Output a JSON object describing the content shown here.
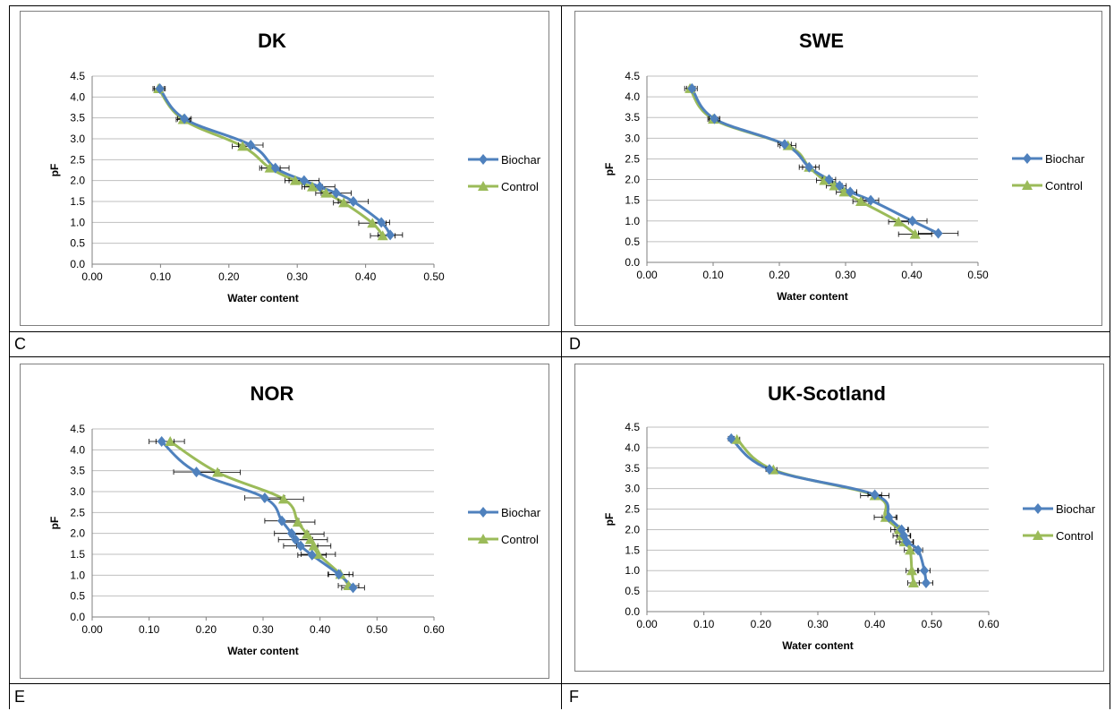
{
  "colors": {
    "biochar": "#4f81bd",
    "control": "#9bbb59",
    "grid": "#bfbfbf",
    "axis": "#7f7f7f",
    "error_bar": "#000000"
  },
  "panel_letters": [
    "C",
    "D",
    "E",
    "F"
  ],
  "chart_data": [
    {
      "type": "line",
      "title": "DK",
      "xlabel": "Water content",
      "ylabel": "pF",
      "xlim": [
        0.0,
        0.5
      ],
      "ylim": [
        0.0,
        4.5
      ],
      "xticks": [
        "0.00",
        "0.10",
        "0.20",
        "0.30",
        "0.40",
        "0.50"
      ],
      "yticks": [
        "0.0",
        "0.5",
        "1.0",
        "1.5",
        "2.0",
        "2.5",
        "3.0",
        "3.5",
        "4.0",
        "4.5"
      ],
      "grid": true,
      "legend_position": "right",
      "series": [
        {
          "name": "Biochar",
          "marker": "diamond",
          "x": [
            0.099,
            0.135,
            0.232,
            0.268,
            0.31,
            0.333,
            0.357,
            0.382,
            0.423,
            0.436
          ],
          "y": [
            4.2,
            3.48,
            2.85,
            2.3,
            2.0,
            1.85,
            1.7,
            1.5,
            1.0,
            0.7
          ],
          "error": [
            0.008,
            0.01,
            0.018,
            0.02,
            0.022,
            0.022,
            0.022,
            0.022,
            0.012,
            0.018
          ]
        },
        {
          "name": "Control",
          "marker": "triangle",
          "x": [
            0.097,
            0.133,
            0.22,
            0.26,
            0.297,
            0.322,
            0.342,
            0.368,
            0.41,
            0.425
          ],
          "y": [
            4.2,
            3.46,
            2.82,
            2.3,
            2.0,
            1.85,
            1.7,
            1.47,
            0.98,
            0.68
          ],
          "error": [
            0.008,
            0.01,
            0.015,
            0.015,
            0.015,
            0.015,
            0.015,
            0.015,
            0.02,
            0.018
          ]
        }
      ]
    },
    {
      "type": "line",
      "title": "SWE",
      "xlabel": "Water content",
      "ylabel": "pF",
      "xlim": [
        0.0,
        0.5
      ],
      "ylim": [
        0.0,
        4.5
      ],
      "xticks": [
        "0.00",
        "0.10",
        "0.20",
        "0.30",
        "0.40",
        "0.50"
      ],
      "yticks": [
        "0.0",
        "0.5",
        "1.0",
        "1.5",
        "2.0",
        "2.5",
        "3.0",
        "3.5",
        "4.0",
        "4.5"
      ],
      "grid": true,
      "legend_position": "right",
      "series": [
        {
          "name": "Biochar",
          "marker": "diamond",
          "x": [
            0.068,
            0.102,
            0.208,
            0.245,
            0.275,
            0.291,
            0.307,
            0.338,
            0.401,
            0.44
          ],
          "y": [
            4.2,
            3.47,
            2.85,
            2.3,
            2.0,
            1.85,
            1.7,
            1.5,
            1.0,
            0.7
          ],
          "error": [
            0.008,
            0.008,
            0.01,
            0.01,
            0.01,
            0.01,
            0.01,
            0.012,
            0.022,
            0.03
          ]
        },
        {
          "name": "Control",
          "marker": "triangle",
          "x": [
            0.065,
            0.1,
            0.213,
            0.245,
            0.268,
            0.283,
            0.298,
            0.323,
            0.38,
            0.405
          ],
          "y": [
            4.2,
            3.46,
            2.82,
            2.3,
            1.98,
            1.85,
            1.7,
            1.47,
            0.98,
            0.68
          ],
          "error": [
            0.008,
            0.008,
            0.012,
            0.015,
            0.012,
            0.012,
            0.012,
            0.012,
            0.015,
            0.025
          ]
        }
      ]
    },
    {
      "type": "line",
      "title": "NOR",
      "xlabel": "Water content",
      "ylabel": "pF",
      "xlim": [
        0.0,
        0.6
      ],
      "ylim": [
        0.0,
        4.5
      ],
      "xticks": [
        "0.00",
        "0.10",
        "0.20",
        "0.30",
        "0.40",
        "0.50",
        "0.60"
      ],
      "yticks": [
        "0.0",
        "0.5",
        "1.0",
        "1.5",
        "2.0",
        "2.5",
        "3.0",
        "3.5",
        "4.0",
        "4.5"
      ],
      "grid": true,
      "legend_position": "right",
      "series": [
        {
          "name": "Biochar",
          "marker": "diamond",
          "x": [
            0.122,
            0.183,
            0.303,
            0.333,
            0.35,
            0.357,
            0.366,
            0.386,
            0.433,
            0.458
          ],
          "y": [
            4.2,
            3.47,
            2.85,
            2.3,
            2.0,
            1.85,
            1.7,
            1.48,
            1.02,
            0.7
          ],
          "error": [
            0.022,
            0.04,
            0.035,
            0.03,
            0.03,
            0.03,
            0.03,
            0.025,
            0.018,
            0.02
          ]
        },
        {
          "name": "Control",
          "marker": "triangle",
          "x": [
            0.137,
            0.22,
            0.336,
            0.361,
            0.377,
            0.383,
            0.389,
            0.397,
            0.436,
            0.45
          ],
          "y": [
            4.2,
            3.46,
            2.82,
            2.27,
            1.98,
            1.85,
            1.7,
            1.5,
            1.02,
            0.75
          ],
          "error": [
            0.025,
            0.04,
            0.035,
            0.03,
            0.03,
            0.03,
            0.03,
            0.03,
            0.022,
            0.018
          ]
        }
      ]
    },
    {
      "type": "line",
      "title": "UK-Scotland",
      "xlabel": "Water content",
      "ylabel": "pF",
      "xlim": [
        0.0,
        0.6
      ],
      "ylim": [
        0.0,
        4.5
      ],
      "xticks": [
        "0.00",
        "0.10",
        "0.20",
        "0.30",
        "0.40",
        "0.50",
        "0.60"
      ],
      "yticks": [
        "0.0",
        "0.5",
        "1.0",
        "1.5",
        "2.0",
        "2.5",
        "3.0",
        "3.5",
        "4.0",
        "4.5"
      ],
      "grid": true,
      "legend_position": "right",
      "series": [
        {
          "name": "Biochar",
          "marker": "diamond",
          "x": [
            0.148,
            0.215,
            0.4,
            0.425,
            0.447,
            0.451,
            0.456,
            0.476,
            0.487,
            0.49
          ],
          "y": [
            4.22,
            3.47,
            2.85,
            2.3,
            2.0,
            1.85,
            1.7,
            1.5,
            1.0,
            0.7
          ],
          "error": [
            0.005,
            0.006,
            0.012,
            0.012,
            0.012,
            0.012,
            0.012,
            0.008,
            0.01,
            0.012
          ]
        },
        {
          "name": "Control",
          "marker": "triangle",
          "x": [
            0.158,
            0.222,
            0.4,
            0.419,
            0.443,
            0.447,
            0.452,
            0.462,
            0.465,
            0.468
          ],
          "y": [
            4.2,
            3.46,
            2.83,
            2.3,
            2.0,
            1.85,
            1.7,
            1.5,
            1.0,
            0.7
          ],
          "error": [
            0.005,
            0.006,
            0.025,
            0.02,
            0.015,
            0.015,
            0.015,
            0.01,
            0.01,
            0.01
          ]
        }
      ]
    }
  ]
}
